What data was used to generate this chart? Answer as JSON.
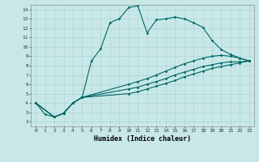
{
  "xlabel": "Humidex (Indice chaleur)",
  "bg_color": "#c8e8e8",
  "grid_color": "#b0d4d4",
  "line_color": "#006666",
  "xlim": [
    -0.5,
    23.5
  ],
  "ylim": [
    1.5,
    14.5
  ],
  "xticks": [
    0,
    1,
    2,
    3,
    4,
    5,
    6,
    7,
    8,
    9,
    10,
    11,
    12,
    13,
    14,
    15,
    16,
    17,
    18,
    19,
    20,
    21,
    22,
    23
  ],
  "yticks": [
    2,
    3,
    4,
    5,
    6,
    7,
    8,
    9,
    10,
    11,
    12,
    13,
    14
  ],
  "line1_x": [
    0,
    1,
    2,
    3,
    4,
    5,
    6,
    7,
    8,
    9,
    10,
    11,
    12,
    13,
    14,
    15,
    16,
    17,
    18,
    19,
    20,
    21,
    22,
    23
  ],
  "line1_y": [
    4.0,
    2.8,
    2.5,
    2.9,
    4.0,
    4.6,
    8.5,
    9.8,
    12.6,
    13.0,
    14.2,
    14.4,
    11.5,
    12.9,
    13.0,
    13.2,
    13.0,
    12.6,
    12.1,
    10.7,
    9.7,
    9.2,
    8.8,
    8.5
  ],
  "line2_x": [
    0,
    2,
    3,
    4,
    5,
    10,
    11,
    12,
    13,
    14,
    15,
    16,
    17,
    18,
    19,
    20,
    21,
    22,
    23
  ],
  "line2_y": [
    4.0,
    2.5,
    2.9,
    4.0,
    4.6,
    6.0,
    6.3,
    6.6,
    7.0,
    7.4,
    7.8,
    8.2,
    8.5,
    8.8,
    9.0,
    9.1,
    9.0,
    8.8,
    8.5
  ],
  "line3_x": [
    0,
    2,
    3,
    4,
    5,
    10,
    11,
    12,
    13,
    14,
    15,
    16,
    17,
    18,
    19,
    20,
    21,
    22,
    23
  ],
  "line3_y": [
    4.0,
    2.5,
    2.9,
    4.0,
    4.6,
    5.5,
    5.7,
    6.0,
    6.3,
    6.6,
    7.0,
    7.3,
    7.6,
    7.9,
    8.1,
    8.3,
    8.4,
    8.4,
    8.5
  ],
  "line4_x": [
    0,
    2,
    3,
    4,
    5,
    10,
    11,
    12,
    13,
    14,
    15,
    16,
    17,
    18,
    19,
    20,
    21,
    22,
    23
  ],
  "line4_y": [
    4.0,
    2.5,
    2.9,
    4.0,
    4.6,
    5.0,
    5.2,
    5.5,
    5.8,
    6.1,
    6.4,
    6.8,
    7.1,
    7.4,
    7.7,
    7.9,
    8.1,
    8.3,
    8.5
  ]
}
